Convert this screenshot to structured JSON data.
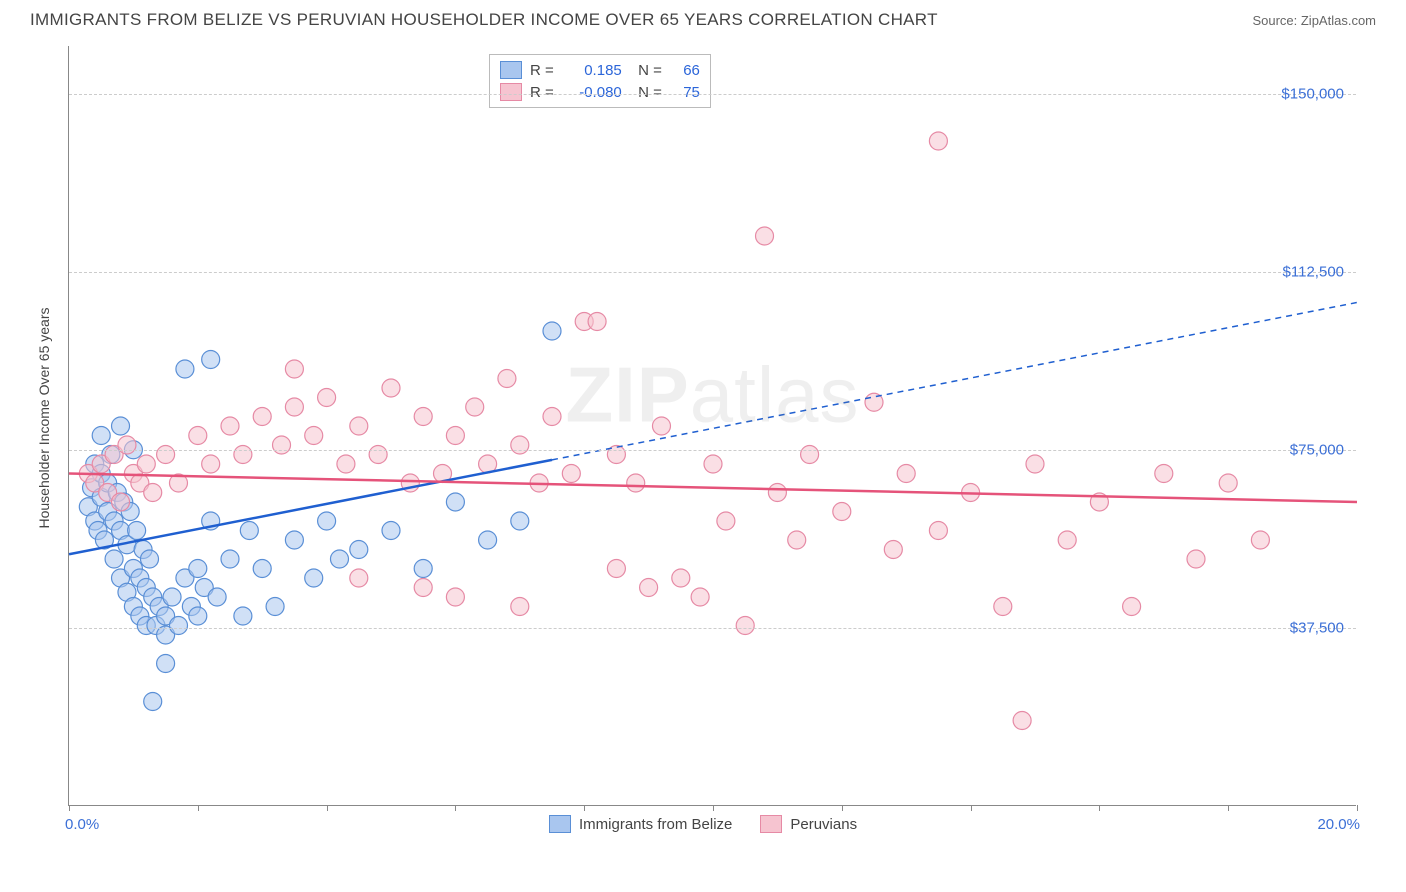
{
  "header": {
    "title": "IMMIGRANTS FROM BELIZE VS PERUVIAN HOUSEHOLDER INCOME OVER 65 YEARS CORRELATION CHART",
    "source": "Source: ZipAtlas.com"
  },
  "chart": {
    "type": "scatter",
    "y_axis_label": "Householder Income Over 65 years",
    "xlim": [
      0,
      20
    ],
    "ylim": [
      0,
      160000
    ],
    "x_min_label": "0.0%",
    "x_max_label": "20.0%",
    "x_ticks": [
      0,
      2,
      4,
      6,
      8,
      10,
      12,
      14,
      16,
      18,
      20
    ],
    "y_gridlines": [
      37500,
      75000,
      112500,
      150000
    ],
    "y_tick_labels": [
      "$37,500",
      "$75,000",
      "$112,500",
      "$150,000"
    ],
    "background_color": "#ffffff",
    "grid_color": "#cccccc",
    "axis_color": "#888888",
    "tick_label_color": "#3b6fd6",
    "marker_radius": 9,
    "marker_opacity": 0.55,
    "watermark": "ZIPatlas",
    "series": [
      {
        "name": "Immigrants from Belize",
        "fill_color": "#a9c6ef",
        "stroke_color": "#5a8fd6",
        "R": "0.185",
        "N": "66",
        "trend": {
          "y_at_x0": 53000,
          "y_at_x20": 106000,
          "solid_until_x": 7.5,
          "line_width": 2.5
        },
        "points": [
          [
            0.3,
            63000
          ],
          [
            0.35,
            67000
          ],
          [
            0.4,
            60000
          ],
          [
            0.4,
            72000
          ],
          [
            0.45,
            58000
          ],
          [
            0.5,
            65000
          ],
          [
            0.5,
            70000
          ],
          [
            0.55,
            56000
          ],
          [
            0.6,
            62000
          ],
          [
            0.6,
            68000
          ],
          [
            0.65,
            74000
          ],
          [
            0.7,
            52000
          ],
          [
            0.7,
            60000
          ],
          [
            0.75,
            66000
          ],
          [
            0.8,
            48000
          ],
          [
            0.8,
            58000
          ],
          [
            0.85,
            64000
          ],
          [
            0.9,
            45000
          ],
          [
            0.9,
            55000
          ],
          [
            0.95,
            62000
          ],
          [
            1.0,
            42000
          ],
          [
            1.0,
            50000
          ],
          [
            1.05,
            58000
          ],
          [
            1.1,
            40000
          ],
          [
            1.1,
            48000
          ],
          [
            1.15,
            54000
          ],
          [
            1.2,
            38000
          ],
          [
            1.2,
            46000
          ],
          [
            1.25,
            52000
          ],
          [
            1.3,
            44000
          ],
          [
            1.35,
            38000
          ],
          [
            1.4,
            42000
          ],
          [
            1.5,
            40000
          ],
          [
            1.5,
            36000
          ],
          [
            1.6,
            44000
          ],
          [
            1.7,
            38000
          ],
          [
            1.8,
            48000
          ],
          [
            1.9,
            42000
          ],
          [
            2.0,
            50000
          ],
          [
            2.0,
            40000
          ],
          [
            2.1,
            46000
          ],
          [
            2.2,
            60000
          ],
          [
            2.3,
            44000
          ],
          [
            2.5,
            52000
          ],
          [
            2.7,
            40000
          ],
          [
            2.8,
            58000
          ],
          [
            3.0,
            50000
          ],
          [
            3.2,
            42000
          ],
          [
            3.5,
            56000
          ],
          [
            3.8,
            48000
          ],
          [
            4.0,
            60000
          ],
          [
            4.2,
            52000
          ],
          [
            4.5,
            54000
          ],
          [
            5.0,
            58000
          ],
          [
            5.5,
            50000
          ],
          [
            6.0,
            64000
          ],
          [
            6.5,
            56000
          ],
          [
            7.0,
            60000
          ],
          [
            7.5,
            100000
          ],
          [
            1.8,
            92000
          ],
          [
            2.2,
            94000
          ],
          [
            0.5,
            78000
          ],
          [
            0.8,
            80000
          ],
          [
            1.0,
            75000
          ],
          [
            1.3,
            22000
          ],
          [
            1.5,
            30000
          ]
        ]
      },
      {
        "name": "Peruvians",
        "fill_color": "#f6c4d0",
        "stroke_color": "#e68aa5",
        "R": "-0.080",
        "N": "75",
        "trend": {
          "y_at_x0": 70000,
          "y_at_x20": 64000,
          "solid_until_x": 20,
          "line_width": 2.5
        },
        "points": [
          [
            0.3,
            70000
          ],
          [
            0.4,
            68000
          ],
          [
            0.5,
            72000
          ],
          [
            0.6,
            66000
          ],
          [
            0.7,
            74000
          ],
          [
            0.8,
            64000
          ],
          [
            0.9,
            76000
          ],
          [
            1.0,
            70000
          ],
          [
            1.1,
            68000
          ],
          [
            1.2,
            72000
          ],
          [
            1.3,
            66000
          ],
          [
            1.5,
            74000
          ],
          [
            1.7,
            68000
          ],
          [
            2.0,
            78000
          ],
          [
            2.2,
            72000
          ],
          [
            2.5,
            80000
          ],
          [
            2.7,
            74000
          ],
          [
            3.0,
            82000
          ],
          [
            3.3,
            76000
          ],
          [
            3.5,
            84000
          ],
          [
            3.8,
            78000
          ],
          [
            4.0,
            86000
          ],
          [
            4.3,
            72000
          ],
          [
            4.5,
            80000
          ],
          [
            4.8,
            74000
          ],
          [
            5.0,
            88000
          ],
          [
            5.3,
            68000
          ],
          [
            5.5,
            82000
          ],
          [
            5.8,
            70000
          ],
          [
            6.0,
            78000
          ],
          [
            6.3,
            84000
          ],
          [
            6.5,
            72000
          ],
          [
            6.8,
            90000
          ],
          [
            7.0,
            76000
          ],
          [
            7.3,
            68000
          ],
          [
            7.5,
            82000
          ],
          [
            7.8,
            70000
          ],
          [
            8.0,
            102000
          ],
          [
            8.2,
            102000
          ],
          [
            8.5,
            74000
          ],
          [
            8.8,
            68000
          ],
          [
            9.0,
            46000
          ],
          [
            9.2,
            80000
          ],
          [
            9.5,
            48000
          ],
          [
            9.8,
            44000
          ],
          [
            10.0,
            72000
          ],
          [
            10.2,
            60000
          ],
          [
            10.5,
            38000
          ],
          [
            10.8,
            120000
          ],
          [
            11.0,
            66000
          ],
          [
            11.3,
            56000
          ],
          [
            11.5,
            74000
          ],
          [
            12.0,
            62000
          ],
          [
            12.5,
            85000
          ],
          [
            12.8,
            54000
          ],
          [
            13.0,
            70000
          ],
          [
            13.5,
            58000
          ],
          [
            13.5,
            140000
          ],
          [
            14.0,
            66000
          ],
          [
            14.5,
            42000
          ],
          [
            15.0,
            72000
          ],
          [
            15.5,
            56000
          ],
          [
            16.0,
            64000
          ],
          [
            16.5,
            42000
          ],
          [
            17.0,
            70000
          ],
          [
            17.5,
            52000
          ],
          [
            18.0,
            68000
          ],
          [
            18.5,
            56000
          ],
          [
            14.8,
            18000
          ],
          [
            3.5,
            92000
          ],
          [
            5.5,
            46000
          ],
          [
            6.0,
            44000
          ],
          [
            7.0,
            42000
          ],
          [
            4.5,
            48000
          ],
          [
            8.5,
            50000
          ]
        ]
      }
    ],
    "legend_bottom": [
      {
        "label": "Immigrants from Belize",
        "fill": "#a9c6ef",
        "stroke": "#5a8fd6"
      },
      {
        "label": "Peruvians",
        "fill": "#f6c4d0",
        "stroke": "#e68aa5"
      }
    ]
  }
}
